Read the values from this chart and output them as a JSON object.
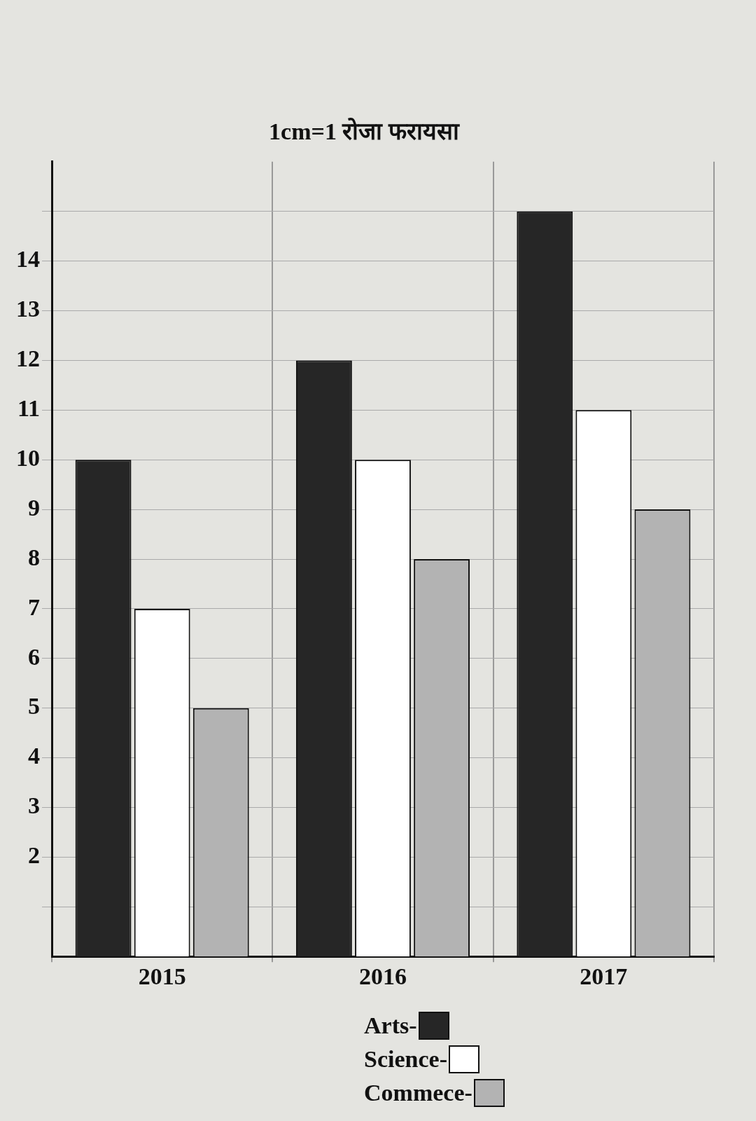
{
  "chart_data": {
    "type": "bar",
    "title": "1cm=1 रोजा फरायसा",
    "categories": [
      "2015",
      "2016",
      "2017"
    ],
    "series": [
      {
        "name": "Arts-",
        "color": "#262626",
        "values": [
          10,
          12,
          15
        ]
      },
      {
        "name": "Science-",
        "color": "#ffffff",
        "values": [
          7,
          10,
          11
        ]
      },
      {
        "name": "Commece-",
        "color": "#b3b3b3",
        "values": [
          5,
          8,
          9
        ]
      }
    ],
    "ylim": [
      0,
      16
    ],
    "yticks": [
      {
        "value": 1,
        "label": null
      },
      2,
      3,
      4,
      5,
      6,
      7,
      8,
      9,
      10,
      11,
      12,
      13,
      14,
      {
        "value": 15,
        "label": null
      }
    ],
    "grid": true,
    "legend": "bottom"
  }
}
